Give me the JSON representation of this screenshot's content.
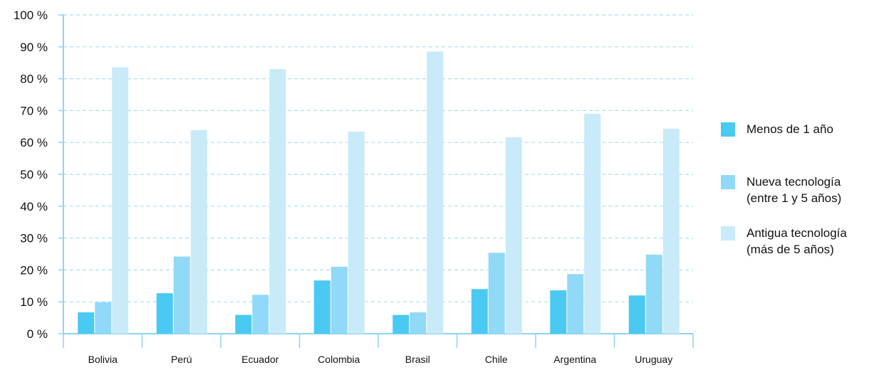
{
  "chart_data": {
    "type": "bar",
    "categories": [
      "Bolivia",
      "Perú",
      "Ecuador",
      "Colombia",
      "Brasil",
      "Chile",
      "Argentina",
      "Uruguay"
    ],
    "series": [
      {
        "name": "Menos de 1 año",
        "color": "#4ac9f3",
        "values": [
          6.7,
          12.7,
          5.9,
          16.7,
          5.9,
          14.0,
          13.6,
          12.0
        ]
      },
      {
        "name": "Nueva tecnología\n(entre 1 y 5 años)",
        "color": "#90d9f7",
        "values": [
          9.9,
          24.2,
          12.2,
          21.0,
          6.7,
          25.4,
          18.7,
          24.8
        ]
      },
      {
        "name": "Antigua tecnología\n(más de 5 años)",
        "color": "#c8eaf9",
        "values": [
          83.6,
          63.9,
          83.0,
          63.4,
          88.5,
          61.6,
          69.0,
          64.3
        ]
      }
    ],
    "y_ticks": [
      "0 %",
      "10 %",
      "20 %",
      "30 %",
      "40 %",
      "50 %",
      "60 %",
      "70 %",
      "80 %",
      "90 %",
      "100 %"
    ],
    "ylim": [
      0,
      100
    ],
    "grid": true,
    "legend_position": "right",
    "title": "",
    "xlabel": "",
    "ylabel": ""
  }
}
